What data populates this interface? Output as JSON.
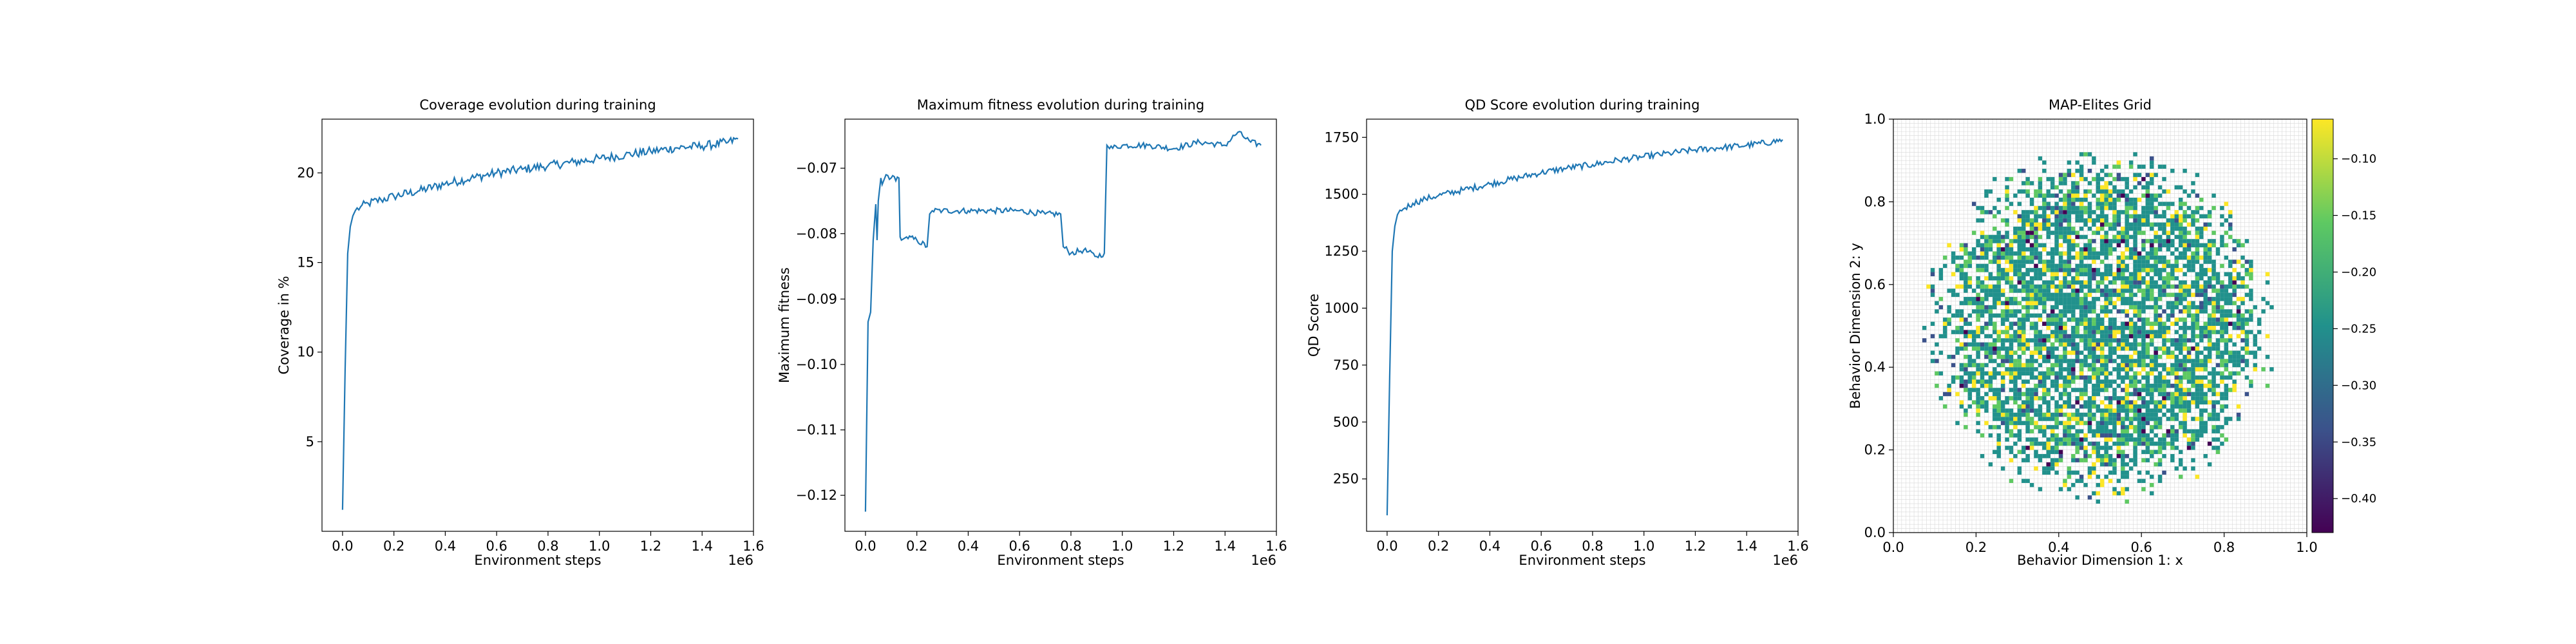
{
  "chart_data": [
    {
      "type": "line",
      "title": "Coverage evolution during training",
      "xlabel": "Environment steps",
      "ylabel": "Coverage in %",
      "x_offset_label": "1e6",
      "xlim": [
        -0.08,
        1.6
      ],
      "ylim": [
        0,
        23
      ],
      "xticks": [
        "0.0",
        "0.2",
        "0.4",
        "0.6",
        "0.8",
        "1.0",
        "1.2",
        "1.4",
        "1.6"
      ],
      "yticks": [
        "5",
        "10",
        "15",
        "20"
      ],
      "series": [
        {
          "color": "#1f77b4",
          "x": [
            0.0,
            0.01,
            0.02,
            0.03,
            0.04,
            0.05,
            0.07,
            0.1,
            0.15,
            0.2,
            0.3,
            0.4,
            0.5,
            0.6,
            0.7,
            0.8,
            0.9,
            1.0,
            1.1,
            1.2,
            1.3,
            1.4,
            1.5,
            1.54
          ],
          "y": [
            1.2,
            9.0,
            15.5,
            17.0,
            17.6,
            17.9,
            18.1,
            18.3,
            18.5,
            18.7,
            19.0,
            19.4,
            19.7,
            20.0,
            20.2,
            20.4,
            20.6,
            20.8,
            21.0,
            21.2,
            21.4,
            21.5,
            21.7,
            21.9
          ]
        }
      ]
    },
    {
      "type": "line",
      "title": "Maximum fitness evolution during training",
      "xlabel": "Environment steps",
      "ylabel": "Maximum fitness",
      "x_offset_label": "1e6",
      "xlim": [
        -0.08,
        1.6
      ],
      "ylim": [
        -0.1255,
        -0.0625
      ],
      "xticks": [
        "0.0",
        "0.2",
        "0.4",
        "0.6",
        "0.8",
        "1.0",
        "1.2",
        "1.4",
        "1.6"
      ],
      "yticks": [
        "−0.12",
        "−0.11",
        "−0.10",
        "−0.09",
        "−0.08",
        "−0.07"
      ],
      "series": [
        {
          "color": "#1f77b4",
          "x": [
            0.0,
            0.01,
            0.02,
            0.03,
            0.04,
            0.045,
            0.05,
            0.06,
            0.065,
            0.08,
            0.1,
            0.13,
            0.135,
            0.14,
            0.16,
            0.2,
            0.24,
            0.25,
            0.26,
            0.3,
            0.4,
            0.5,
            0.6,
            0.7,
            0.76,
            0.77,
            0.8,
            0.85,
            0.9,
            0.93,
            0.94,
            0.95,
            1.0,
            1.1,
            1.2,
            1.3,
            1.4,
            1.45,
            1.5,
            1.54
          ],
          "y": [
            -0.1225,
            -0.0935,
            -0.092,
            -0.081,
            -0.0755,
            -0.081,
            -0.075,
            -0.0715,
            -0.0725,
            -0.071,
            -0.0715,
            -0.0715,
            -0.0805,
            -0.081,
            -0.0805,
            -0.081,
            -0.082,
            -0.077,
            -0.0765,
            -0.0765,
            -0.0765,
            -0.0765,
            -0.0765,
            -0.077,
            -0.077,
            -0.082,
            -0.083,
            -0.0825,
            -0.0835,
            -0.083,
            -0.0665,
            -0.067,
            -0.0665,
            -0.0665,
            -0.067,
            -0.066,
            -0.0665,
            -0.0645,
            -0.066,
            -0.0665
          ]
        }
      ]
    },
    {
      "type": "line",
      "title": "QD Score evolution during training",
      "xlabel": "Environment steps",
      "ylabel": "QD Score",
      "x_offset_label": "1e6",
      "xlim": [
        -0.08,
        1.6
      ],
      "ylim": [
        20,
        1830
      ],
      "xticks": [
        "0.0",
        "0.2",
        "0.4",
        "0.6",
        "0.8",
        "1.0",
        "1.2",
        "1.4",
        "1.6"
      ],
      "yticks": [
        "250",
        "500",
        "750",
        "1000",
        "1250",
        "1500",
        "1750"
      ],
      "series": [
        {
          "color": "#1f77b4",
          "x": [
            0.0,
            0.01,
            0.02,
            0.03,
            0.04,
            0.05,
            0.07,
            0.1,
            0.15,
            0.2,
            0.3,
            0.4,
            0.5,
            0.6,
            0.7,
            0.8,
            0.9,
            1.0,
            1.1,
            1.2,
            1.3,
            1.4,
            1.5,
            1.54
          ],
          "y": [
            90,
            700,
            1250,
            1360,
            1410,
            1430,
            1440,
            1460,
            1480,
            1495,
            1520,
            1545,
            1570,
            1595,
            1615,
            1630,
            1650,
            1665,
            1680,
            1695,
            1705,
            1715,
            1730,
            1740
          ]
        }
      ]
    },
    {
      "type": "heatmap",
      "title": "MAP-Elites Grid",
      "xlabel": "Behavior Dimension 1: x",
      "ylabel": "Behavior Dimension 2: y",
      "xlim": [
        0,
        1
      ],
      "ylim": [
        0,
        1
      ],
      "xticks": [
        "0.0",
        "0.2",
        "0.4",
        "0.6",
        "0.8",
        "1.0"
      ],
      "yticks": [
        "0.0",
        "0.2",
        "0.4",
        "0.6",
        "0.8",
        "1.0"
      ],
      "grid_cells": 100,
      "filled_region": {
        "center": [
          0.5,
          0.5
        ],
        "radius": 0.44
      },
      "colormap": "viridis",
      "colorbar_range": [
        -0.43,
        -0.065
      ],
      "colorbar_ticks": [
        "−0.10",
        "−0.15",
        "−0.20",
        "−0.25",
        "−0.30",
        "−0.35",
        "−0.40"
      ],
      "colors": [
        "#440154",
        "#3b528b",
        "#21918c",
        "#5ec962",
        "#fde725"
      ]
    }
  ]
}
